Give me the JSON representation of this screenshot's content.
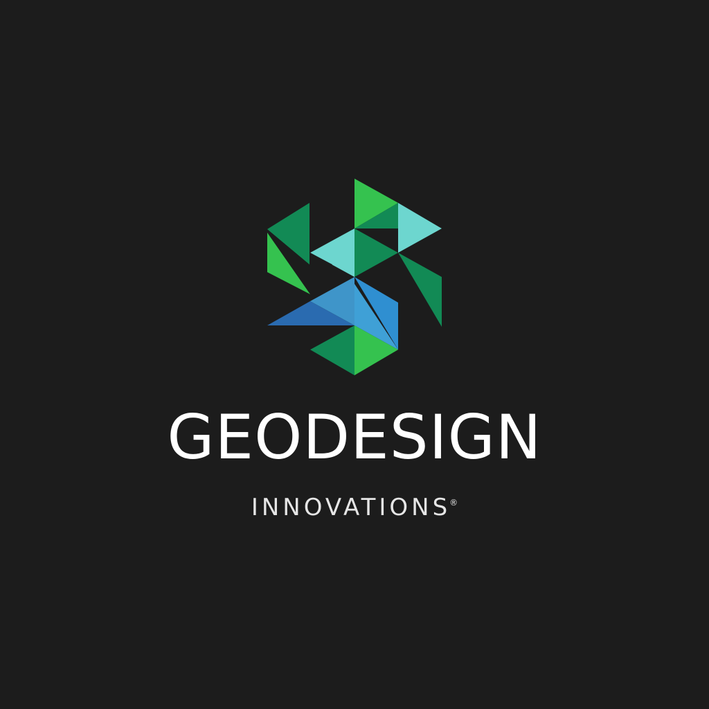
{
  "logo": {
    "icon_name": "geometric-triangle-mosaic-logo",
    "colors": {
      "background": "#1c1c1c",
      "green_bright": "#35c24f",
      "green_dark": "#128a55",
      "teal_light": "#6dd6cf",
      "teal_mid": "#3fb5b8",
      "blue": "#2f8fd1",
      "blue_dark": "#2a6bb0",
      "text": "#ffffff"
    },
    "brand_name": "GEODESIGN",
    "tagline": "INNOVATIONS",
    "registered_mark": "®"
  }
}
